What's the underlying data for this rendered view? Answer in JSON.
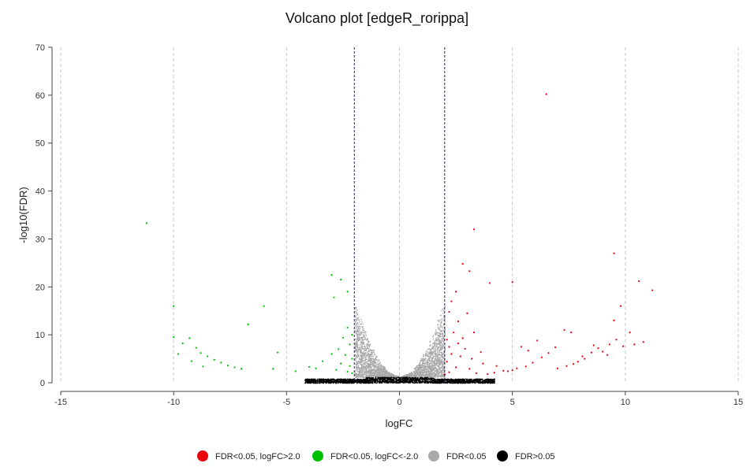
{
  "chart_data": {
    "type": "scatter",
    "title": "Volcano plot [edgeR_rorippa]",
    "xlabel": "logFC",
    "ylabel": "-log10(FDR)",
    "xlim": [
      -15,
      15
    ],
    "ylim": [
      0,
      70
    ],
    "x_ticks": [
      -15,
      -10,
      -5,
      0,
      5,
      10,
      15
    ],
    "y_ticks": [
      0,
      10,
      20,
      30,
      40,
      50,
      60,
      70
    ],
    "grid": "vertical dashed",
    "thresholds": {
      "logFC": [
        -2,
        2
      ],
      "line_color": "#1a237e"
    },
    "legend_position": "bottom",
    "series": [
      {
        "name": "FDR<0.05, logFC>2.0",
        "color": "#e8000b",
        "points": [
          [
            6.5,
            60.2
          ],
          [
            3.3,
            32.0
          ],
          [
            9.5,
            27.0
          ],
          [
            2.8,
            24.8
          ],
          [
            10.6,
            21.2
          ],
          [
            11.2,
            19.3
          ],
          [
            5.0,
            21.0
          ],
          [
            3.1,
            23.3
          ],
          [
            4.0,
            20.8
          ],
          [
            9.8,
            16.0
          ],
          [
            9.5,
            13.0
          ],
          [
            10.8,
            8.5
          ],
          [
            2.5,
            19.0
          ],
          [
            2.3,
            17.0
          ],
          [
            2.2,
            14.8
          ],
          [
            2.6,
            12.8
          ],
          [
            3.3,
            10.5
          ],
          [
            3.0,
            14.5
          ],
          [
            2.4,
            10.5
          ],
          [
            2.8,
            9.3
          ],
          [
            2.1,
            9.0
          ],
          [
            2.6,
            8.2
          ],
          [
            2.2,
            7.5
          ],
          [
            2.9,
            7.1
          ],
          [
            3.6,
            6.4
          ],
          [
            2.3,
            6.0
          ],
          [
            2.7,
            5.5
          ],
          [
            3.2,
            5.0
          ],
          [
            2.1,
            4.4
          ],
          [
            3.7,
            4.0
          ],
          [
            4.3,
            3.5
          ],
          [
            2.5,
            3.2
          ],
          [
            3.1,
            2.9
          ],
          [
            4.6,
            2.5
          ],
          [
            2.2,
            2.2
          ],
          [
            3.4,
            2.0
          ],
          [
            4.8,
            2.4
          ],
          [
            5.2,
            3.0
          ],
          [
            5.6,
            3.4
          ],
          [
            5.9,
            4.2
          ],
          [
            6.3,
            5.3
          ],
          [
            6.1,
            8.8
          ],
          [
            6.6,
            6.2
          ],
          [
            5.4,
            7.5
          ],
          [
            5.7,
            6.7
          ],
          [
            6.9,
            7.4
          ],
          [
            7.3,
            11.0
          ],
          [
            7.0,
            3.0
          ],
          [
            7.4,
            3.5
          ],
          [
            7.7,
            3.9
          ],
          [
            7.9,
            4.4
          ],
          [
            8.2,
            5.0
          ],
          [
            8.1,
            5.5
          ],
          [
            8.5,
            6.3
          ],
          [
            8.8,
            7.2
          ],
          [
            9.0,
            6.5
          ],
          [
            9.3,
            8.0
          ],
          [
            9.6,
            9.0
          ],
          [
            9.9,
            7.6
          ],
          [
            10.2,
            10.5
          ],
          [
            10.4,
            8.0
          ],
          [
            8.6,
            7.8
          ],
          [
            9.2,
            5.8
          ],
          [
            7.6,
            10.5
          ],
          [
            5.0,
            2.6
          ],
          [
            4.2,
            2.1
          ],
          [
            3.9,
            1.8
          ],
          [
            2.0,
            1.7
          ]
        ]
      },
      {
        "name": "FDR<0.05, logFC<-2.0",
        "color": "#00c000",
        "points": [
          [
            -11.2,
            33.3
          ],
          [
            -3.0,
            22.5
          ],
          [
            -2.6,
            21.5
          ],
          [
            -2.3,
            19.0
          ],
          [
            -6.0,
            16.0
          ],
          [
            -2.9,
            17.8
          ],
          [
            -10.0,
            16.0
          ],
          [
            -6.7,
            12.2
          ],
          [
            -2.3,
            11.5
          ],
          [
            -2.1,
            10.0
          ],
          [
            -2.5,
            9.4
          ],
          [
            -2.2,
            8.0
          ],
          [
            -2.7,
            7.0
          ],
          [
            -3.0,
            6.0
          ],
          [
            -2.4,
            5.8
          ],
          [
            -2.1,
            5.0
          ],
          [
            -3.4,
            4.5
          ],
          [
            -2.6,
            4.0
          ],
          [
            -2.2,
            3.5
          ],
          [
            -3.7,
            3.0
          ],
          [
            -2.8,
            2.7
          ],
          [
            -2.3,
            2.3
          ],
          [
            -2.1,
            2.0
          ],
          [
            -10.0,
            9.5
          ],
          [
            -9.6,
            8.2
          ],
          [
            -9.3,
            9.3
          ],
          [
            -9.0,
            7.3
          ],
          [
            -8.8,
            6.2
          ],
          [
            -8.5,
            5.5
          ],
          [
            -8.2,
            4.8
          ],
          [
            -7.9,
            4.2
          ],
          [
            -7.6,
            3.6
          ],
          [
            -7.3,
            3.2
          ],
          [
            -7.0,
            2.9
          ],
          [
            -9.8,
            6.0
          ],
          [
            -9.2,
            4.5
          ],
          [
            -8.7,
            3.4
          ],
          [
            -5.4,
            6.3
          ],
          [
            -5.6,
            2.9
          ],
          [
            -4.0,
            3.3
          ],
          [
            -4.6,
            2.4
          ]
        ]
      },
      {
        "name": "FDR<0.05",
        "color": "#a9a9a9",
        "points": []
      },
      {
        "name": "FDR>0.05",
        "color": "#000000",
        "points": []
      }
    ]
  }
}
